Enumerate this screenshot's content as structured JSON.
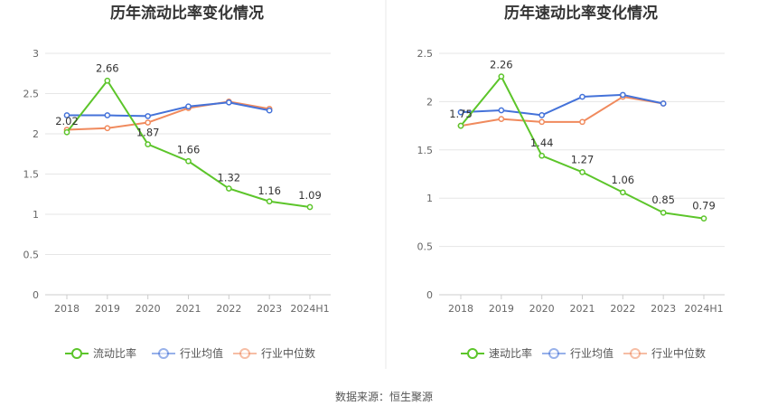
{
  "colors": {
    "primary": "#5cc52a",
    "industry_avg": "#4472d9",
    "industry_median": "#f08a5d",
    "grid": "#e6e6e6",
    "divider": "#e8e8e8"
  },
  "footer": {
    "source": "数据来源：恒生聚源"
  },
  "chart_data": [
    {
      "type": "line",
      "title": "历年流动比率变化情况",
      "categories": [
        "2018",
        "2019",
        "2020",
        "2021",
        "2022",
        "2023",
        "2024H1"
      ],
      "ylim": [
        0,
        3
      ],
      "yticks": [
        0,
        0.5,
        1,
        1.5,
        2,
        2.5,
        3
      ],
      "ytick_labels": [
        "0",
        "0.5",
        "1",
        "1.5",
        "2",
        "2.5",
        "3"
      ],
      "grid": true,
      "legend_position": "bottom",
      "series": [
        {
          "name": "流动比率",
          "color": "#5cc52a",
          "labeled": true,
          "values": [
            2.02,
            2.66,
            1.87,
            1.66,
            1.32,
            1.16,
            1.09
          ],
          "labels": [
            "2.02",
            "2.66",
            "1.87",
            "1.66",
            "1.32",
            "1.16",
            "1.09"
          ]
        },
        {
          "name": "行业均值",
          "color": "#4472d9",
          "labeled": false,
          "values": [
            2.23,
            2.23,
            2.22,
            2.34,
            2.39,
            2.29,
            null
          ]
        },
        {
          "name": "行业中位数",
          "color": "#f08a5d",
          "labeled": false,
          "values": [
            2.05,
            2.07,
            2.14,
            2.32,
            2.4,
            2.31,
            null
          ]
        }
      ]
    },
    {
      "type": "line",
      "title": "历年速动比率变化情况",
      "categories": [
        "2018",
        "2019",
        "2020",
        "2021",
        "2022",
        "2023",
        "2024H1"
      ],
      "ylim": [
        0,
        2.5
      ],
      "yticks": [
        0,
        0.5,
        1,
        1.5,
        2,
        2.5
      ],
      "ytick_labels": [
        "0",
        "0.5",
        "1",
        "1.5",
        "2",
        "2.5"
      ],
      "grid": true,
      "legend_position": "bottom",
      "series": [
        {
          "name": "速动比率",
          "color": "#5cc52a",
          "labeled": true,
          "values": [
            1.75,
            2.26,
            1.44,
            1.27,
            1.06,
            0.85,
            0.79
          ],
          "labels": [
            "1.75",
            "2.26",
            "1.44",
            "1.27",
            "1.06",
            "0.85",
            "0.79"
          ]
        },
        {
          "name": "行业均值",
          "color": "#4472d9",
          "labeled": false,
          "values": [
            1.89,
            1.91,
            1.86,
            2.05,
            2.07,
            1.98,
            null
          ]
        },
        {
          "name": "行业中位数",
          "color": "#f08a5d",
          "labeled": false,
          "values": [
            1.75,
            1.82,
            1.79,
            1.79,
            2.05,
            1.98,
            null
          ]
        }
      ]
    }
  ]
}
